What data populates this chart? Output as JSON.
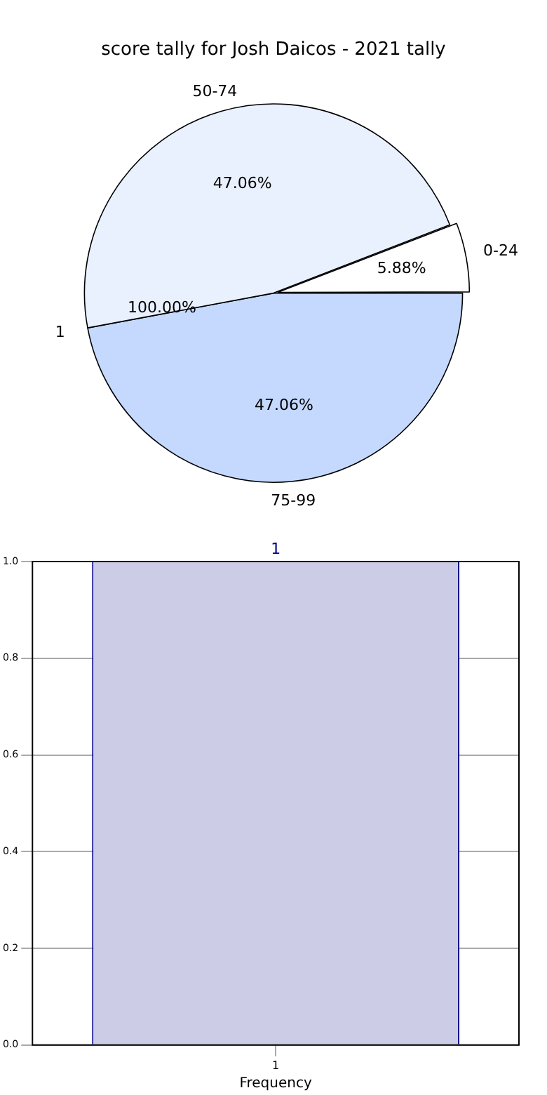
{
  "chart_data": [
    {
      "type": "pie",
      "title": "score tally for Josh Daicos - 2021 tally",
      "categories": [
        "75-99",
        "50-74",
        "0-24"
      ],
      "values": [
        47.06,
        47.06,
        5.88
      ],
      "colors": [
        "#c4d9fd",
        "#eaf1fe",
        "#ffffff"
      ],
      "value_labels": [
        "47.06%",
        "47.06%",
        "5.88%"
      ],
      "annotations": [
        "1",
        "100.00%"
      ],
      "legend": false
    },
    {
      "type": "bar",
      "categories": [
        "1"
      ],
      "values": [
        1
      ],
      "color": "#cccce6",
      "xlabel": "Frequency",
      "ylim": [
        0,
        1
      ],
      "yticks": [
        {
          "value": 0,
          "label": "0.0"
        },
        {
          "value": 0.2,
          "label": "0.2"
        },
        {
          "value": 0.4,
          "label": "0.4"
        },
        {
          "value": 0.6,
          "label": "0.6"
        },
        {
          "value": 0.8,
          "label": "0.8"
        },
        {
          "value": 1,
          "label": "1.0"
        }
      ],
      "grid": true,
      "data_labels": true,
      "legend": false
    }
  ]
}
